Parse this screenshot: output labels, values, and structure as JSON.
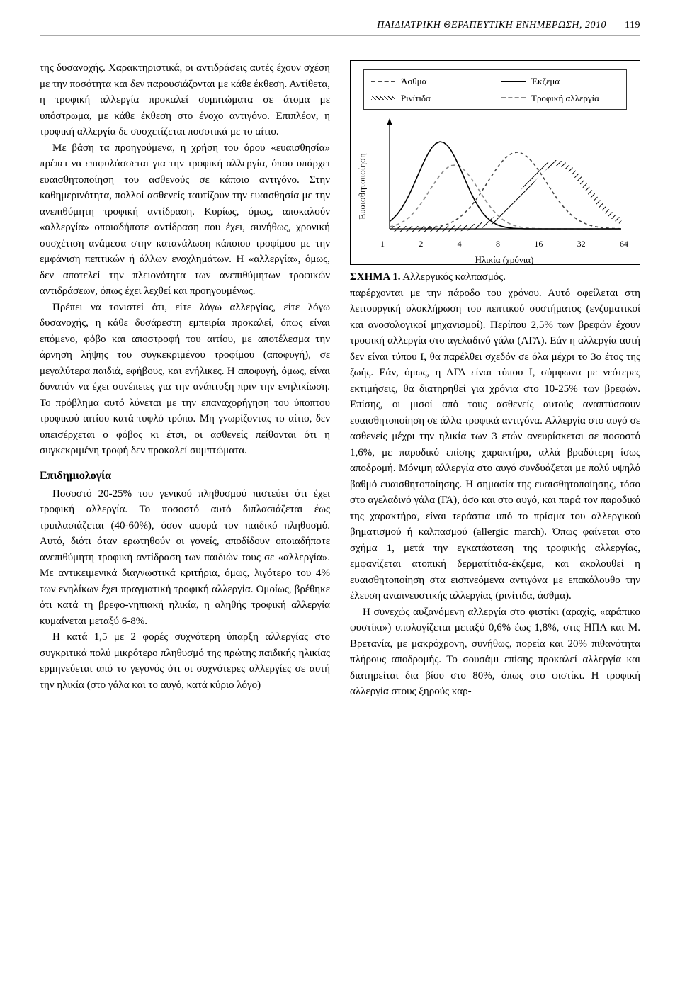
{
  "header": {
    "running_title": "ΠΑΙΔΙΑΤΡΙΚΗ ΘΕΡΑΠΕΥΤΙΚΗ ΕΝΗΜΕΡΩΣΗ, 2010",
    "page_number": "119"
  },
  "left_column": {
    "para1": "της δυσανοχής. Χαρακτηριστικά, οι αντιδράσεις αυτές έχουν σχέση με την ποσότητα και δεν παρουσιάζονται με κάθε έκθεση. Αντίθετα, η τροφική αλλεργία προκαλεί συμπτώματα σε άτομα με υπόστρωμα, με κάθε έκθεση στο ένοχο αντιγόνο. Επιπλέον, η τροφική αλλεργία δε συσχετίζεται ποσοτικά με το αίτιο.",
    "para2": "Με βάση τα προηγούμενα, η χρήση του όρου «ευαισθησία» πρέπει να επιφυλάσσεται για την τροφική αλλεργία, όπου υπάρχει ευαισθητοποίηση του ασθενούς σε κάποιο αντιγόνο. Στην καθημερινότητα, πολλοί ασθενείς ταυτίζουν την ευαισθησία με την ανεπιθύμητη τροφική αντίδραση. Κυρίως, όμως, αποκαλούν «αλλεργία» οποιαδήποτε αντίδραση που έχει, συνήθως, χρονική συσχέτιση ανάμεσα στην κατανάλωση κάποιου τροφίμου με την εμφάνιση πεπτικών ή άλλων ενοχλημάτων. Η «αλλεργία», όμως, δεν αποτελεί την πλειονότητα των ανεπιθύμητων τροφικών αντιδράσεων, όπως έχει λεχθεί και προηγουμένως.",
    "para3": "Πρέπει να τονιστεί ότι, είτε λόγω αλλεργίας, είτε λόγω δυσανοχής, η κάθε δυσάρεστη εμπειρία προκαλεί, όπως είναι επόμενο, φόβο και αποστροφή του αιτίου, με αποτέλεσμα την άρνηση λήψης του συγκεκριμένου τροφίμου (αποφυγή), σε μεγαλύτερα παιδιά, εφήβους, και ενήλικες. Η αποφυγή, όμως, είναι δυνατόν να έχει συνέπειες για την ανάπτυξη πριν την ενηλικίωση. Το πρόβλημα αυτό λύνεται με την επαναχορήγηση του ύποπτου τροφικού αιτίου κατά τυφλό τρόπο. Μη γνωρίζοντας το αίτιο, δεν υπεισέρχεται ο φόβος κι έτσι, οι ασθενείς πείθονται ότι η συγκεκριμένη τροφή δεν προκαλεί συμπτώματα.",
    "section_title": "Επιδημιολογία",
    "para4": "Ποσοστό 20-25% του γενικού πληθυσμού πιστεύει ότι έχει τροφική αλλεργία. Το ποσοστό αυτό διπλασιάζεται έως τριπλασιάζεται (40-60%), όσον αφορά τον παιδικό πληθυσμό. Αυτό, διότι όταν ερωτηθούν οι γονείς, αποδίδουν οποιαδήποτε ανεπιθύμητη τροφική αντίδραση των παιδιών τους σε «αλλεργία». Με αντικειμενικά διαγνωστικά κριτήρια, όμως, λιγότερο του 4% των ενηλίκων έχει πραγματική τροφική αλλεργία. Ομοίως, βρέθηκε ότι κατά τη βρεφο-νηπιακή ηλικία, η αληθής τροφική αλλεργία κυμαίνεται μεταξύ 6-8%.",
    "para5": "Η κατά 1,5 με 2 φορές συχνότερη ύπαρξη αλλεργίας στο συγκριτικά πολύ μικρότερο πληθυσμό της πρώτης παιδικής ηλικίας ερμηνεύεται από το γεγονός ότι οι συχνότερες αλλεργίες σε αυτή την ηλικία (στο γάλα και το αυγό, κατά κύριο λόγο)"
  },
  "figure": {
    "legend": {
      "asthma": "Άσθμα",
      "eczema": "Έκζεμα",
      "rhinitis": "Ρινίτιδα",
      "food_allergy": "Τροφική αλλεργία"
    },
    "y_axis_label": "Ευαισθητοποίηση",
    "x_axis_label": "Ηλικία (χρόνια)",
    "x_ticks": [
      "1",
      "2",
      "4",
      "8",
      "16",
      "32",
      "64"
    ],
    "caption_label": "ΣΧΗΜΑ 1.",
    "caption_text": "Αλλεργικός καλπασμός.",
    "styling": {
      "background_color": "#ffffff",
      "border_color": "#000000",
      "curves": {
        "eczema": {
          "color": "#000000",
          "dash": "none",
          "width": 1.6,
          "peak_x": 0.22,
          "peak_y": 0.82,
          "spread": 0.28
        },
        "food": {
          "color": "#888888",
          "dash": "5,4",
          "width": 1.6,
          "peak_x": 0.28,
          "peak_y": 0.6,
          "spread": 0.3
        },
        "asthma": {
          "color": "#444444",
          "dash": "4,4",
          "width": 1.6,
          "peak_x": 0.55,
          "peak_y": 0.72,
          "spread": 0.36
        },
        "rhinitis": {
          "color": "#000000",
          "dash": "hatch",
          "width": 4.0,
          "peak_x": 0.72,
          "peak_y": 0.62,
          "spread": 0.38
        }
      },
      "axis_font_size": 13
    }
  },
  "right_column": {
    "para1": "παρέρχονται με την πάροδο του χρόνου. Αυτό οφείλεται στη λειτουργική ολοκλήρωση του πεπτικού συστήματος (ενζυματικοί και ανοσολογικοί μηχανισμοί). Περίπου 2,5% των βρεφών έχουν τροφική αλλεργία στο αγελαδινό γάλα (ΑΓΑ). Εάν η αλλεργία αυτή δεν είναι τύπου I, θα παρέλθει σχεδόν σε όλα μέχρι το 3ο έτος της ζωής. Εάν, όμως, η ΑΓΑ είναι τύπου I, σύμφωνα με νεότερες εκτιμήσεις, θα διατηρηθεί για χρόνια στο 10-25% των βρεφών. Επίσης, οι μισοί από τους ασθενείς αυτούς αναπτύσσουν ευαισθητοποίηση σε άλλα τροφικά αντιγόνα. Αλλεργία στο αυγό σε ασθενείς μέχρι την ηλικία των 3 ετών ανευρίσκεται σε ποσοστό 1,6%, με παροδικό επίσης χαρακτήρα, αλλά βραδύτερη ίσως αποδρομή. Μόνιμη αλλεργία στο αυγό συνδυάζεται με πολύ υψηλό βαθμό ευαισθητοποίησης. Η σημασία της ευαισθητοποίησης, τόσο στο αγελαδινό γάλα (ΓΑ), όσο και στο αυγό, και παρά τον παροδικό της χαρακτήρα, είναι τεράστια υπό το πρίσμα του αλλεργικού βηματισμού ή καλπασμού (allergic march). Όπως φαίνεται στο σχήμα 1, μετά την εγκατάσταση της τροφικής αλλεργίας, εμφανίζεται ατοπική δερματίτιδα-έκζεμα, και ακολουθεί η ευαισθητοποίηση στα εισπνεόμενα αντιγόνα με επακόλουθο την έλευση αναπνευστικής αλλεργίας (ρινίτιδα, άσθμα).",
    "para2": "Η συνεχώς αυξανόμενη αλλεργία στο φιστίκι (αραχίς, «αράπικο φυστίκι») υπολογίζεται μεταξύ 0,6% έως 1,8%, στις ΗΠΑ και Μ. Βρετανία, με μακρόχρονη, συνήθως, πορεία και 20% πιθανότητα πλήρους αποδρομής. Το σουσάμι επίσης προκαλεί αλλεργία και διατηρείται δια βίου στο 80%, όπως στο φιστίκι. Η τροφική αλλεργία στους ξηρούς καρ-"
  }
}
